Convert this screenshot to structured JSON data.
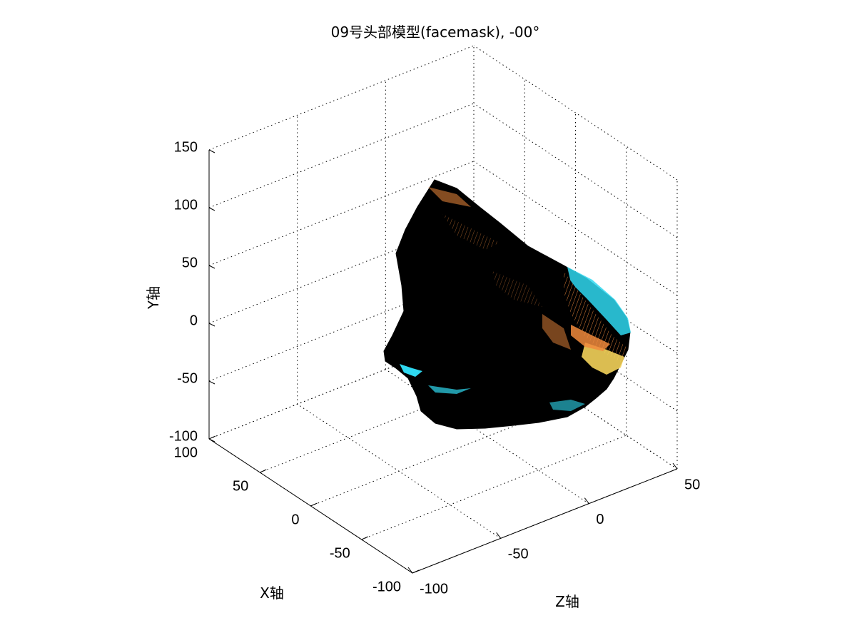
{
  "chart_data": {
    "type": "surface3d",
    "title": "09号头部模型(facemask), -00°",
    "xlabel": "X轴",
    "ylabel": "Y轴",
    "zlabel": "Z轴",
    "xlim": [
      -100,
      100
    ],
    "ylim": [
      -100,
      150
    ],
    "zlim": [
      -100,
      50
    ],
    "x_ticks": [
      "-100",
      "-50",
      "0",
      "50",
      "100"
    ],
    "y_ticks": [
      "-100",
      "-50",
      "0",
      "50",
      "100",
      "150"
    ],
    "z_ticks": [
      "-100",
      "-50",
      "0",
      "50"
    ],
    "grid": true,
    "colors": {
      "surface_edge": "#000000",
      "cyan": "#2fd8f0",
      "orange": "#f08a3c",
      "yellow": "#f3d25a"
    }
  }
}
